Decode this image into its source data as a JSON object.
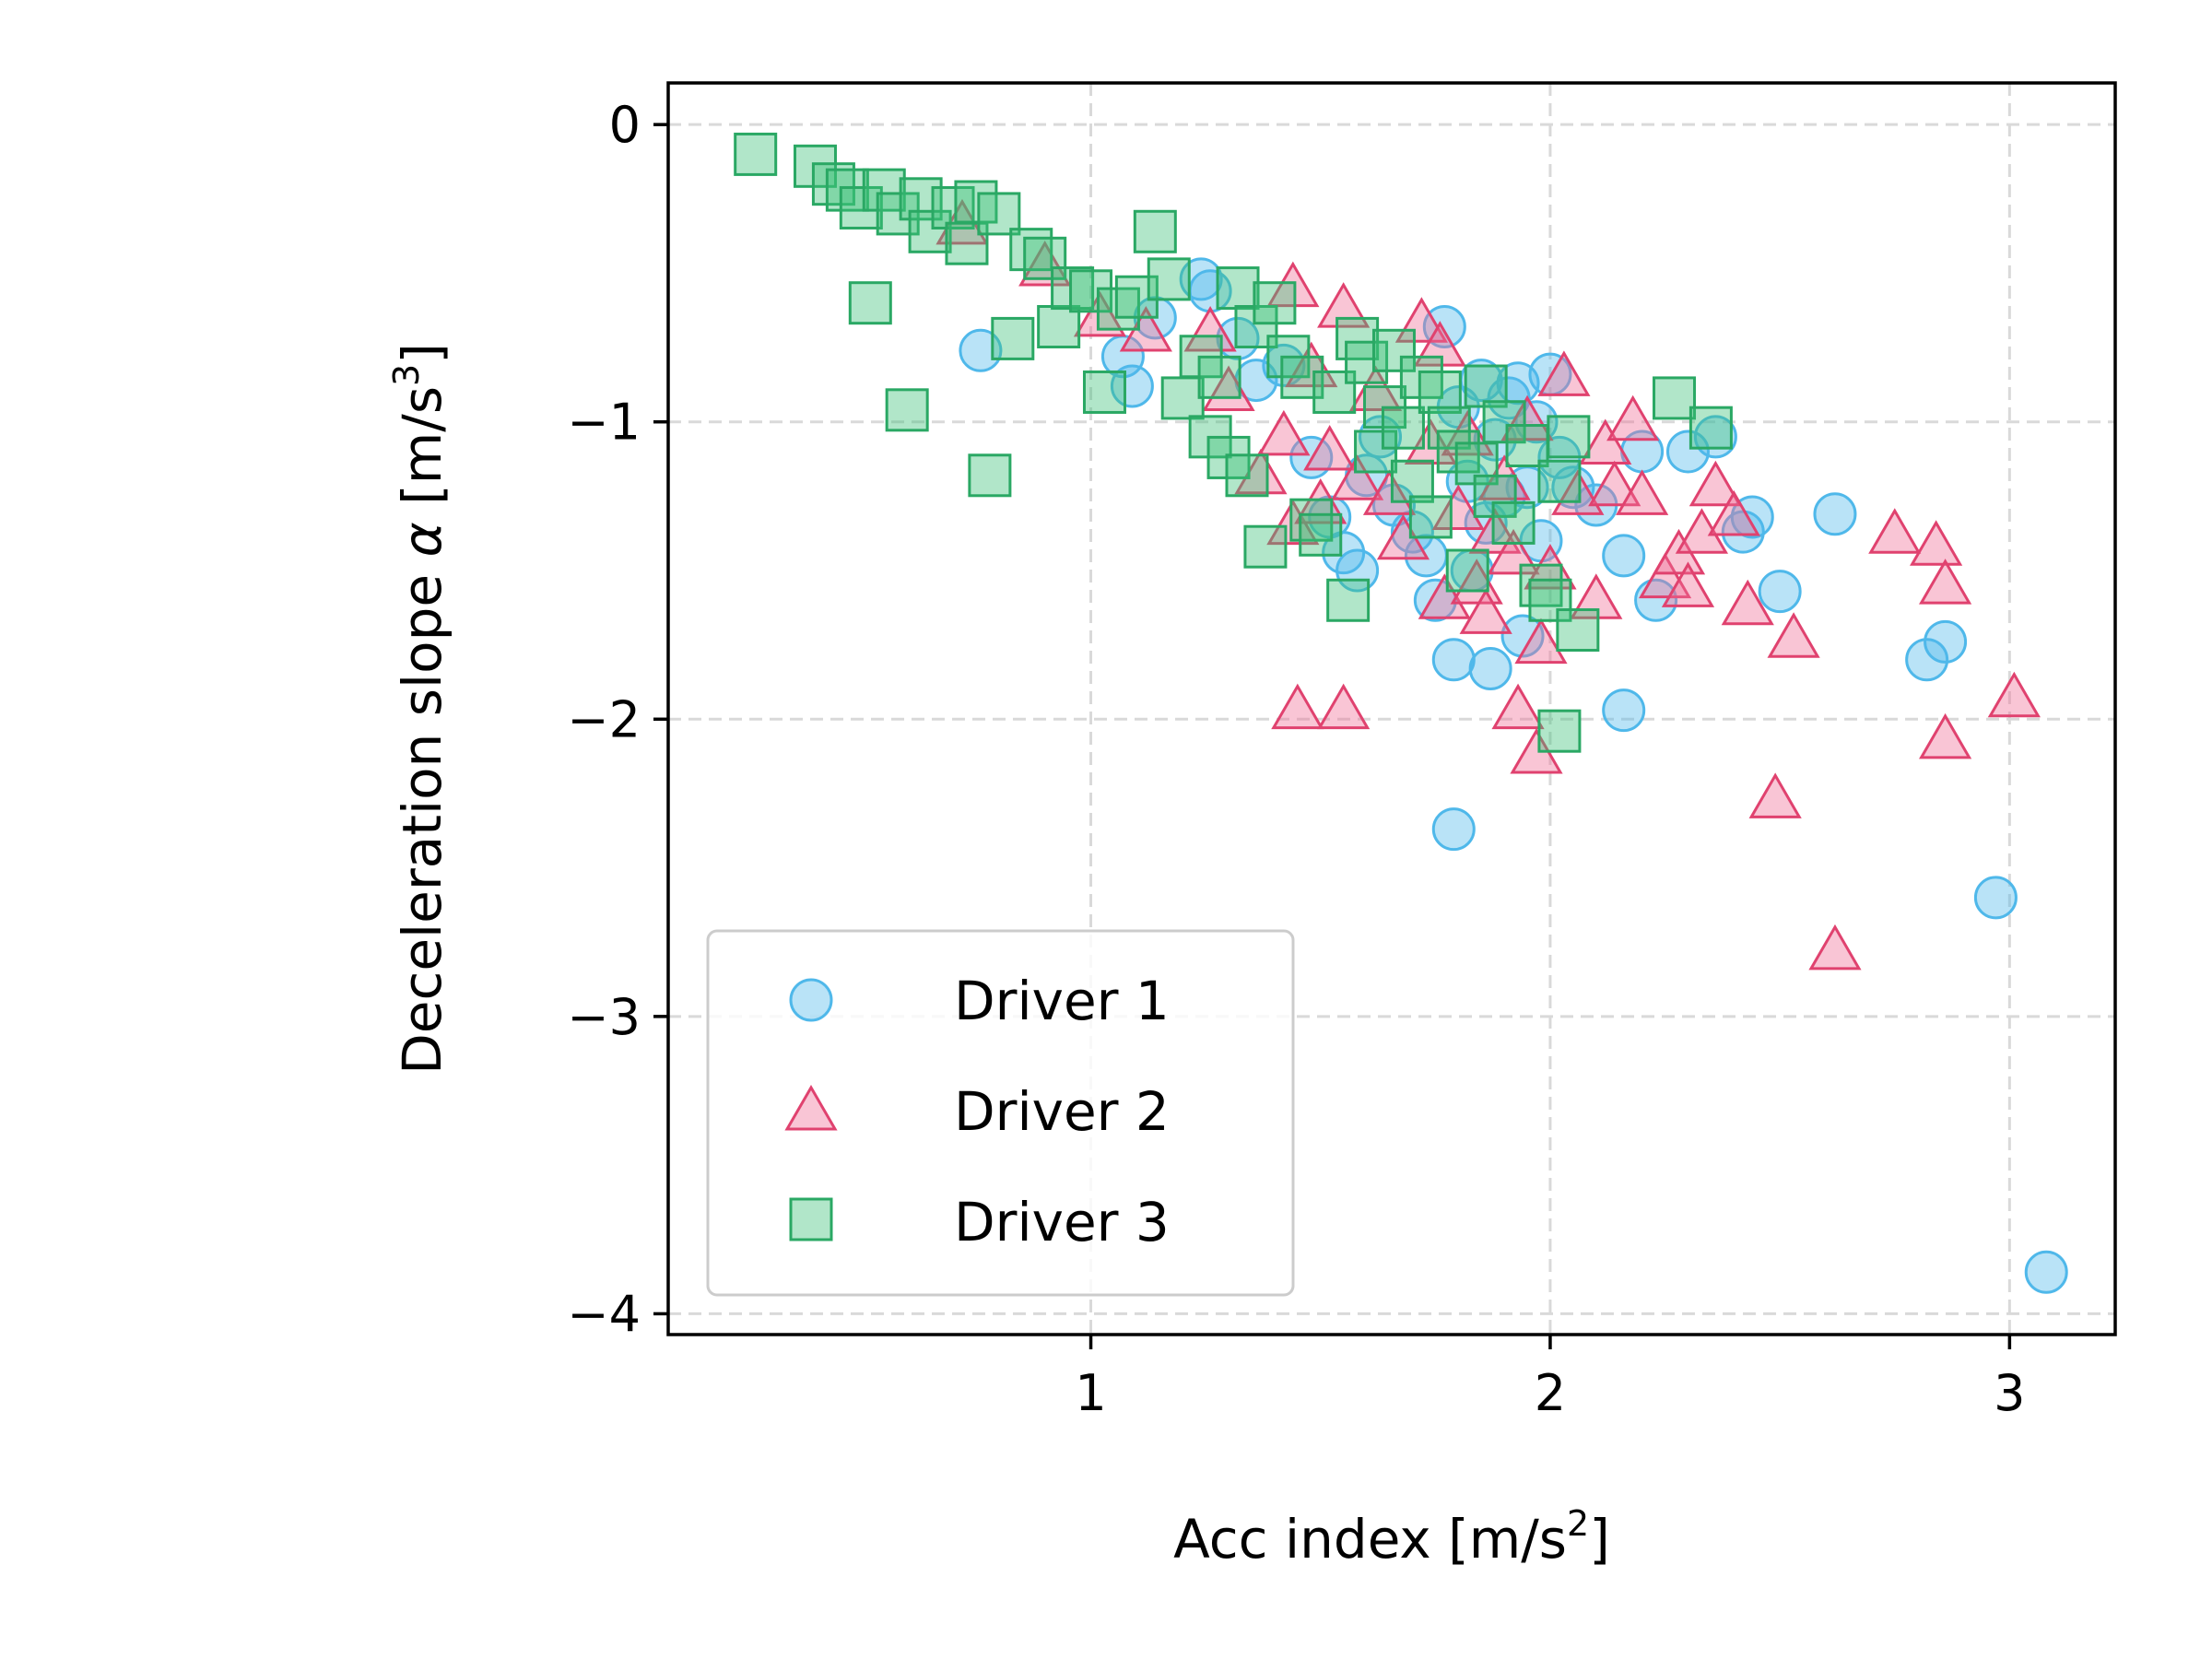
{
  "chart_data": {
    "type": "scatter",
    "xlabel": {
      "main": "Acc index [m/s",
      "sup": "2",
      "tail": "]"
    },
    "ylabel": {
      "main": "Deceleration slope ",
      "greek": "α",
      "mid": " [m/s",
      "sup": "3",
      "tail": "]"
    },
    "xlim": [
      0.08,
      3.23
    ],
    "ylim": [
      -4.07,
      0.14
    ],
    "xticks": [
      1,
      2,
      3
    ],
    "yticks": [
      0,
      -1,
      -2,
      -3,
      -4
    ],
    "xtick_labels": [
      "1",
      "2",
      "3"
    ],
    "ytick_labels": [
      "0",
      "−1",
      "−2",
      "−3",
      "−4"
    ],
    "grid": true,
    "legend_position": "lower-left",
    "series": [
      {
        "name": "Driver 1",
        "marker": "circle",
        "color": "#4fb8ea",
        "edge": "#4fb8ea",
        "points": [
          [
            0.76,
            -0.76
          ],
          [
            1.07,
            -0.78
          ],
          [
            1.09,
            -0.88
          ],
          [
            1.14,
            -0.65
          ],
          [
            1.24,
            -0.52
          ],
          [
            1.26,
            -0.56
          ],
          [
            1.32,
            -0.72
          ],
          [
            1.36,
            -0.86
          ],
          [
            1.42,
            -0.81
          ],
          [
            1.48,
            -1.12
          ],
          [
            1.52,
            -1.32
          ],
          [
            1.55,
            -1.44
          ],
          [
            1.58,
            -1.5
          ],
          [
            1.6,
            -1.18
          ],
          [
            1.63,
            -1.05
          ],
          [
            1.66,
            -1.28
          ],
          [
            1.7,
            -1.37
          ],
          [
            1.73,
            -1.45
          ],
          [
            1.75,
            -1.6
          ],
          [
            1.77,
            -0.68
          ],
          [
            1.79,
            -1.8
          ],
          [
            1.8,
            -0.95
          ],
          [
            1.82,
            -1.2
          ],
          [
            1.83,
            -1.5
          ],
          [
            1.85,
            -0.86
          ],
          [
            1.86,
            -1.34
          ],
          [
            1.87,
            -1.83
          ],
          [
            1.88,
            -1.06
          ],
          [
            1.9,
            -1.25
          ],
          [
            1.91,
            -0.92
          ],
          [
            1.93,
            -0.87
          ],
          [
            1.94,
            -1.72
          ],
          [
            1.95,
            -1.22
          ],
          [
            1.97,
            -1.0
          ],
          [
            1.98,
            -1.4
          ],
          [
            2.0,
            -0.84
          ],
          [
            2.02,
            -1.12
          ],
          [
            2.05,
            -1.22
          ],
          [
            2.1,
            -1.28
          ],
          [
            2.16,
            -1.45
          ],
          [
            2.16,
            -1.97
          ],
          [
            2.2,
            -1.1
          ],
          [
            2.23,
            -1.6
          ],
          [
            2.3,
            -1.1
          ],
          [
            2.36,
            -1.05
          ],
          [
            2.42,
            -1.37
          ],
          [
            2.44,
            -1.32
          ],
          [
            2.5,
            -1.57
          ],
          [
            2.62,
            -1.31
          ],
          [
            2.82,
            -1.8
          ],
          [
            2.86,
            -1.74
          ],
          [
            2.97,
            -2.6
          ],
          [
            3.08,
            -3.86
          ],
          [
            1.79,
            -2.37
          ]
        ]
      },
      {
        "name": "Driver 2",
        "marker": "triangle",
        "color": "#ef6f97",
        "edge": "#e0426f",
        "points": [
          [
            0.72,
            -0.34
          ],
          [
            0.9,
            -0.48
          ],
          [
            1.02,
            -0.65
          ],
          [
            1.12,
            -0.7
          ],
          [
            1.26,
            -0.7
          ],
          [
            1.3,
            -0.9
          ],
          [
            1.37,
            -1.18
          ],
          [
            1.42,
            -1.05
          ],
          [
            1.44,
            -0.55
          ],
          [
            1.44,
            -1.35
          ],
          [
            1.45,
            -1.97
          ],
          [
            1.48,
            -0.82
          ],
          [
            1.5,
            -1.28
          ],
          [
            1.52,
            -1.1
          ],
          [
            1.55,
            -0.62
          ],
          [
            1.55,
            -1.97
          ],
          [
            1.58,
            -1.2
          ],
          [
            1.62,
            -0.9
          ],
          [
            1.65,
            -1.25
          ],
          [
            1.68,
            -1.4
          ],
          [
            1.72,
            -0.67
          ],
          [
            1.74,
            -1.08
          ],
          [
            1.76,
            -0.75
          ],
          [
            1.77,
            -1.6
          ],
          [
            1.8,
            -1.3
          ],
          [
            1.82,
            -1.05
          ],
          [
            1.84,
            -1.55
          ],
          [
            1.86,
            -1.65
          ],
          [
            1.88,
            -1.38
          ],
          [
            1.9,
            -1.2
          ],
          [
            1.92,
            -1.45
          ],
          [
            1.93,
            -1.97
          ],
          [
            1.95,
            -1.0
          ],
          [
            1.97,
            -2.12
          ],
          [
            1.98,
            -1.75
          ],
          [
            2.0,
            -1.5
          ],
          [
            2.03,
            -0.85
          ],
          [
            2.06,
            -1.25
          ],
          [
            2.1,
            -1.6
          ],
          [
            2.12,
            -1.08
          ],
          [
            2.14,
            -1.22
          ],
          [
            2.18,
            -1.0
          ],
          [
            2.2,
            -1.25
          ],
          [
            2.25,
            -1.53
          ],
          [
            2.28,
            -1.45
          ],
          [
            2.3,
            -1.56
          ],
          [
            2.33,
            -1.38
          ],
          [
            2.36,
            -1.22
          ],
          [
            2.4,
            -1.32
          ],
          [
            2.43,
            -1.62
          ],
          [
            2.49,
            -2.27
          ],
          [
            2.53,
            -1.73
          ],
          [
            2.62,
            -2.78
          ],
          [
            2.75,
            -1.38
          ],
          [
            2.84,
            -1.42
          ],
          [
            2.86,
            -1.55
          ],
          [
            2.86,
            -2.07
          ],
          [
            3.01,
            -1.93
          ]
        ]
      },
      {
        "name": "Driver 3",
        "marker": "square",
        "color": "#3cc078",
        "edge": "#2aa864",
        "points": [
          [
            0.27,
            -0.1
          ],
          [
            0.4,
            -0.14
          ],
          [
            0.44,
            -0.2
          ],
          [
            0.47,
            -0.22
          ],
          [
            0.5,
            -0.28
          ],
          [
            0.52,
            -0.6
          ],
          [
            0.55,
            -0.22
          ],
          [
            0.58,
            -0.3
          ],
          [
            0.6,
            -0.96
          ],
          [
            0.63,
            -0.25
          ],
          [
            0.65,
            -0.36
          ],
          [
            0.7,
            -0.28
          ],
          [
            0.73,
            -0.4
          ],
          [
            0.75,
            -0.26
          ],
          [
            0.78,
            -1.18
          ],
          [
            0.8,
            -0.3
          ],
          [
            0.83,
            -0.72
          ],
          [
            0.87,
            -0.42
          ],
          [
            0.9,
            -0.45
          ],
          [
            0.93,
            -0.68
          ],
          [
            0.96,
            -0.55
          ],
          [
            1.0,
            -0.56
          ],
          [
            1.03,
            -0.9
          ],
          [
            1.06,
            -0.62
          ],
          [
            1.1,
            -0.58
          ],
          [
            1.14,
            -0.36
          ],
          [
            1.17,
            -0.52
          ],
          [
            1.2,
            -0.92
          ],
          [
            1.24,
            -0.78
          ],
          [
            1.26,
            -1.05
          ],
          [
            1.28,
            -0.85
          ],
          [
            1.3,
            -1.12
          ],
          [
            1.32,
            -0.55
          ],
          [
            1.34,
            -1.18
          ],
          [
            1.36,
            -0.68
          ],
          [
            1.38,
            -1.42
          ],
          [
            1.4,
            -0.6
          ],
          [
            1.43,
            -0.78
          ],
          [
            1.46,
            -0.85
          ],
          [
            1.48,
            -1.33
          ],
          [
            1.5,
            -1.38
          ],
          [
            1.53,
            -0.9
          ],
          [
            1.56,
            -1.6
          ],
          [
            1.58,
            -0.72
          ],
          [
            1.6,
            -0.8
          ],
          [
            1.62,
            -1.1
          ],
          [
            1.64,
            -0.95
          ],
          [
            1.66,
            -0.76
          ],
          [
            1.68,
            -1.02
          ],
          [
            1.7,
            -1.2
          ],
          [
            1.72,
            -0.85
          ],
          [
            1.74,
            -1.32
          ],
          [
            1.76,
            -0.9
          ],
          [
            1.78,
            -1.02
          ],
          [
            1.8,
            -1.1
          ],
          [
            1.82,
            -1.5
          ],
          [
            1.84,
            -1.14
          ],
          [
            1.86,
            -0.88
          ],
          [
            1.88,
            -1.25
          ],
          [
            1.9,
            -1.0
          ],
          [
            1.92,
            -1.34
          ],
          [
            1.95,
            -1.08
          ],
          [
            1.98,
            -1.55
          ],
          [
            2.0,
            -1.6
          ],
          [
            2.02,
            -1.2
          ],
          [
            2.04,
            -1.05
          ],
          [
            2.06,
            -1.7
          ],
          [
            2.02,
            -2.04
          ],
          [
            2.27,
            -0.92
          ],
          [
            2.35,
            -1.02
          ]
        ]
      }
    ]
  }
}
